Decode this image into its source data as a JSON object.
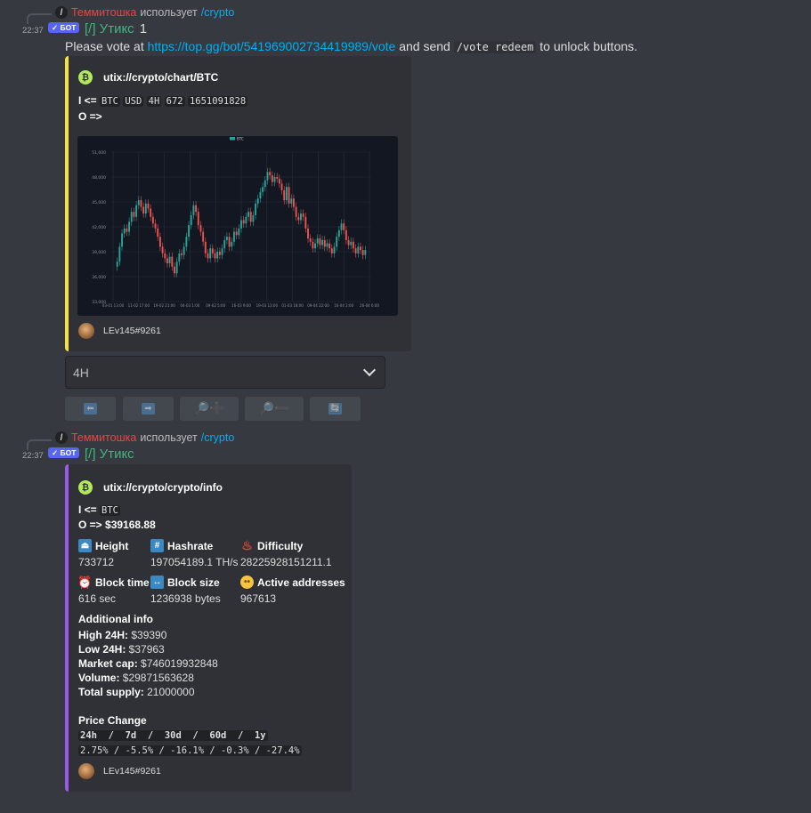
{
  "messages": [
    {
      "reply": {
        "user": "Теммитошка",
        "uses": "использует",
        "command": "/crypto"
      },
      "time": "22:37",
      "badge": "✓ БОТ",
      "author": "[/] Утикс",
      "author_suffix": "1",
      "content": {
        "prefix": "Please vote at ",
        "link": "https://top.gg/bot/541969002734419989/vote",
        "middle": " and send ",
        "code": "/vote redeem",
        "suffix": " to unlock buttons."
      },
      "embed": {
        "accent": "#f7e03b",
        "title": "utix://crypto/chart/BTC",
        "input_label": "I <=",
        "input_chips": [
          "BTC",
          "USD",
          "4H",
          "672",
          "1651091828"
        ],
        "output_label": "O =>",
        "footer": "LEv145#9261"
      },
      "chart_data": {
        "type": "candlestick",
        "legend": [
          "BTC"
        ],
        "series_color": "#26a69a",
        "down_color": "#ef5350",
        "yticks": [
          "51,000",
          "48,000",
          "45,000",
          "42,000",
          "39,000",
          "36,000",
          "33,000"
        ],
        "ylim": [
          33000,
          51000
        ],
        "xticks": [
          "03-01 13:00",
          "11-02 17:00",
          "19-02 21:00",
          "04-03 1:00",
          "09-02 5:00",
          "16-03 9:00",
          "19-03 13:00",
          "01-03 18:00",
          "09-04 22:00",
          "16-04 2:00",
          "26-04 6:00"
        ],
        "values": [
          37200,
          37800,
          39600,
          41200,
          41800,
          41400,
          42600,
          43800,
          43200,
          44600,
          45200,
          44400,
          43600,
          44800,
          44200,
          43200,
          42400,
          41800,
          40800,
          39600,
          38800,
          38200,
          37600,
          38400,
          37200,
          36400,
          37800,
          38800,
          38600,
          39600,
          40800,
          42200,
          43400,
          44600,
          43800,
          42200,
          41400,
          40200,
          38800,
          38200,
          39400,
          38800,
          38200,
          39000,
          38600,
          39400,
          40400,
          40800,
          39600,
          40200,
          41400,
          41000,
          41800,
          42800,
          42400,
          43200,
          43800,
          42600,
          43400,
          44800,
          45400,
          46200,
          46800,
          47600,
          48600,
          48200,
          47400,
          48000,
          47800,
          47200,
          46400,
          45200,
          46800,
          44800,
          45400,
          44400,
          43200,
          42800,
          43600,
          43200,
          41800,
          40600,
          40200,
          39400,
          40000,
          40600,
          39800,
          40400,
          39600,
          40000,
          39400,
          38800,
          39600,
          40800,
          41600,
          42400,
          41600,
          40400,
          39800,
          40200,
          39400,
          38800,
          39600,
          39200,
          38600,
          39200
        ]
      },
      "select": {
        "value": "4H"
      },
      "buttons": [
        {
          "icon": "arrow-left-icon",
          "glyph": "⬅"
        },
        {
          "icon": "arrow-right-icon",
          "glyph": "➡"
        },
        {
          "icon": "zoom-in-icon",
          "glyph": "🔎➕"
        },
        {
          "icon": "zoom-out-icon",
          "glyph": "🔎➖"
        },
        {
          "icon": "refresh-icon",
          "glyph": "🔄"
        }
      ]
    },
    {
      "reply": {
        "user": "Теммитошка",
        "uses": "использует",
        "command": "/crypto"
      },
      "time": "22:37",
      "badge": "✓ БОТ",
      "author": "[/] Утикс",
      "embed": {
        "accent": "#9b59e8",
        "title": "utix://crypto/crypto/info",
        "input_label": "I <=",
        "input_chip": "BTC",
        "output_label": "O =>",
        "output_value": "$39168.88",
        "fields": [
          {
            "icon": "eject-icon",
            "glyph": "⏏",
            "color": "#3b88c3",
            "name": "Height",
            "value": "733712"
          },
          {
            "icon": "hash-icon",
            "glyph": "#",
            "color": "#3b88c3",
            "name": "Hashrate",
            "value": "197054189.1 TH/s"
          },
          {
            "icon": "hot-springs-icon",
            "glyph": "♨",
            "color": "transparent",
            "name": "Difficulty",
            "value": "28225928151211.1"
          },
          {
            "icon": "alarm-clock-icon",
            "glyph": "⏰",
            "color": "transparent",
            "name": "Block time",
            "value": "616 sec"
          },
          {
            "icon": "left-right-arrow-icon",
            "glyph": "↔",
            "color": "#3b88c3",
            "name": "Block size",
            "value": "1236938 bytes"
          },
          {
            "icon": "flushed-face-icon",
            "glyph": "😳",
            "color": "transparent",
            "name": "Active addresses",
            "value": "967613"
          }
        ],
        "additional_title": "Additional info",
        "additional": [
          {
            "label": "High 24H:",
            "value": " $39390"
          },
          {
            "label": "Low 24H:",
            "value": " $37963"
          },
          {
            "label": "Market cap:",
            "value": " $746019932848"
          },
          {
            "label": "Volume:",
            "value": " $29871563628"
          },
          {
            "label": "Total supply:",
            "value": " 21000000"
          }
        ],
        "price_change_title": "Price Change",
        "price_change_header": "24h  /  7d  /  30d  /  60d  /  1y",
        "price_change_values": "2.75% / -5.5% / -16.1% / -0.3% / -27.4%",
        "footer": "LEv145#9261"
      }
    }
  ]
}
